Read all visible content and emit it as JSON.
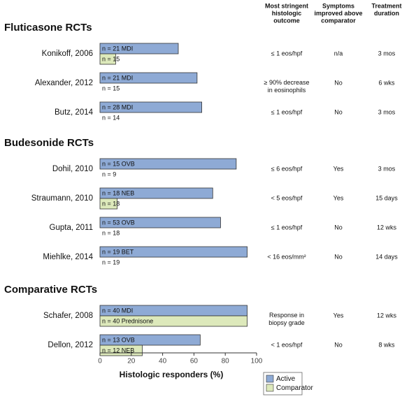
{
  "chart_data": {
    "type": "bar",
    "orientation": "horizontal",
    "groups": [
      {
        "title": "Fluticasone RCTs",
        "categories": [
          "Konikoff, 2006",
          "Alexander, 2012",
          "Butz, 2014"
        ]
      },
      {
        "title": "Budesonide RCTs",
        "categories": [
          "Dohil, 2010",
          "Straumann, 2010",
          "Gupta, 2011",
          "Miehlke, 2014"
        ]
      },
      {
        "title": "Comparative RCTs",
        "categories": [
          "Schafer, 2008",
          "Dellon, 2012"
        ]
      }
    ],
    "series": [
      {
        "name": "Active",
        "color": "#8eaad5",
        "values": [
          50,
          62,
          65,
          87,
          72,
          77,
          94,
          94,
          64
        ],
        "labels": [
          "n = 21  MDI",
          "n = 21  MDI",
          "n = 28  MDI",
          "n = 15  OVB",
          "n = 18  NEB",
          "n = 53  OVB",
          "n = 19  BET",
          "n = 40  MDI",
          "n = 13  OVB"
        ]
      },
      {
        "name": "Comparator",
        "color": "#dde9bb",
        "values": [
          10,
          0,
          0,
          0,
          11,
          0,
          0,
          94,
          27
        ],
        "labels": [
          "n = 15",
          "n = 15",
          "n = 14",
          "n = 9",
          "n = 18",
          "n = 18",
          "n = 19",
          "n = 40  Prednisone",
          "n = 12  NEB"
        ]
      }
    ],
    "columns": [
      [
        "Most stringent",
        "histologic",
        "outcome"
      ],
      [
        "Symptoms",
        "improved above",
        "comparator"
      ],
      [
        "Treatment",
        "duration"
      ]
    ],
    "table": [
      [
        [
          "≤ 1 eos/hpf"
        ],
        [
          "n/a"
        ],
        [
          "3 mos"
        ]
      ],
      [
        [
          "≥ 90% decrease",
          "in eosinophils"
        ],
        [
          "No"
        ],
        [
          "6 wks"
        ]
      ],
      [
        [
          "≤ 1 eos/hpf"
        ],
        [
          "No"
        ],
        [
          "3 mos"
        ]
      ],
      [
        [
          "≤ 6 eos/hpf"
        ],
        [
          "Yes"
        ],
        [
          "3 mos"
        ]
      ],
      [
        [
          "< 5 eos/hpf"
        ],
        [
          "Yes"
        ],
        [
          "15 days"
        ]
      ],
      [
        [
          "≤ 1 eos/hpf"
        ],
        [
          "No"
        ],
        [
          "12 wks"
        ]
      ],
      [
        [
          "< 16 eos/mm²"
        ],
        [
          "No"
        ],
        [
          "14 days"
        ]
      ],
      [
        [
          "Response in",
          "biopsy grade"
        ],
        [
          "Yes"
        ],
        [
          "12 wks"
        ]
      ],
      [
        [
          "< 1 eos/hpf"
        ],
        [
          "No"
        ],
        [
          "8 wks"
        ]
      ]
    ],
    "xlabel": "Histologic responders (%)",
    "xlim": [
      0,
      100
    ],
    "xticks": [
      0,
      20,
      40,
      60,
      80,
      100
    ],
    "legend": "bottom-right"
  }
}
